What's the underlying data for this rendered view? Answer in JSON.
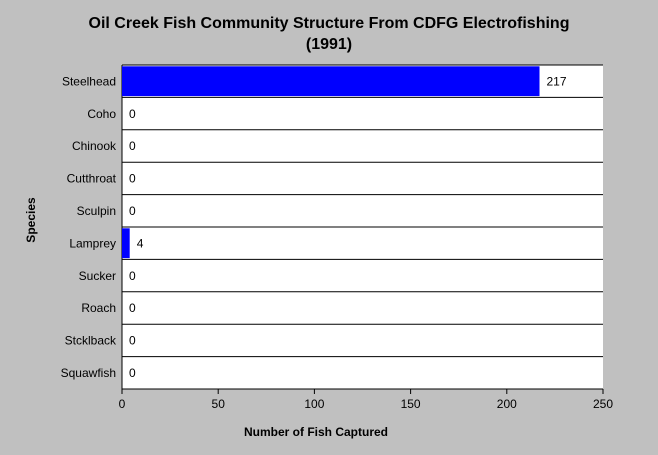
{
  "chart_data": {
    "type": "hbar",
    "title": [
      "Oil Creek Fish Community Structure From CDFG Electrofishing",
      "(1991)"
    ],
    "x_label": "Number of Fish Captured",
    "y_label": "Species",
    "categories": [
      "Steelhead",
      "Coho",
      "Chinook",
      "Cutthroat",
      "Sculpin",
      "Lamprey",
      "Sucker",
      "Roach",
      "Stcklback",
      "Squawfish"
    ],
    "values": [
      217,
      0,
      0,
      0,
      0,
      4,
      0,
      0,
      0,
      0
    ],
    "color": "#0000ff",
    "xlim": [
      0,
      250
    ],
    "xticks": [
      0,
      50,
      100,
      150,
      200,
      250
    ]
  }
}
